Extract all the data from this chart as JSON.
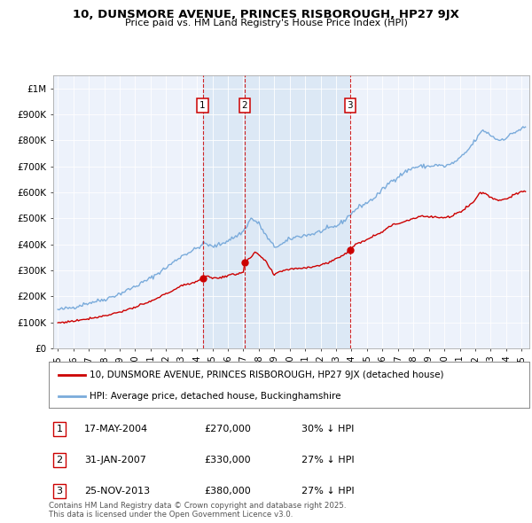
{
  "title": "10, DUNSMORE AVENUE, PRINCES RISBOROUGH, HP27 9JX",
  "subtitle": "Price paid vs. HM Land Registry's House Price Index (HPI)",
  "ylabel_ticks": [
    "£0",
    "£100K",
    "£200K",
    "£300K",
    "£400K",
    "£500K",
    "£600K",
    "£700K",
    "£800K",
    "£900K",
    "£1M"
  ],
  "ytick_values": [
    0,
    100000,
    200000,
    300000,
    400000,
    500000,
    600000,
    700000,
    800000,
    900000,
    1000000
  ],
  "ylim": [
    0,
    1050000
  ],
  "xlim_start": 1994.7,
  "xlim_end": 2025.5,
  "sale_dates": [
    2004.37,
    2007.08,
    2013.9
  ],
  "sale_prices": [
    270000,
    330000,
    380000
  ],
  "sale_labels": [
    "1",
    "2",
    "3"
  ],
  "shade_between": [
    2004.37,
    2013.9
  ],
  "legend_property": "10, DUNSMORE AVENUE, PRINCES RISBOROUGH, HP27 9JX (detached house)",
  "legend_hpi": "HPI: Average price, detached house, Buckinghamshire",
  "table_entries": [
    {
      "num": "1",
      "date": "17-MAY-2004",
      "price": "£270,000",
      "hpi": "30% ↓ HPI"
    },
    {
      "num": "2",
      "date": "31-JAN-2007",
      "price": "£330,000",
      "hpi": "27% ↓ HPI"
    },
    {
      "num": "3",
      "date": "25-NOV-2013",
      "price": "£380,000",
      "hpi": "27% ↓ HPI"
    }
  ],
  "footnote": "Contains HM Land Registry data © Crown copyright and database right 2025.\nThis data is licensed under the Open Government Licence v3.0.",
  "property_line_color": "#cc0000",
  "hpi_line_color": "#7aabdb",
  "vline_color": "#cc0000",
  "shade_color": "#dce8f5",
  "background_color": "#ffffff",
  "plot_bg_color": "#edf2fb"
}
